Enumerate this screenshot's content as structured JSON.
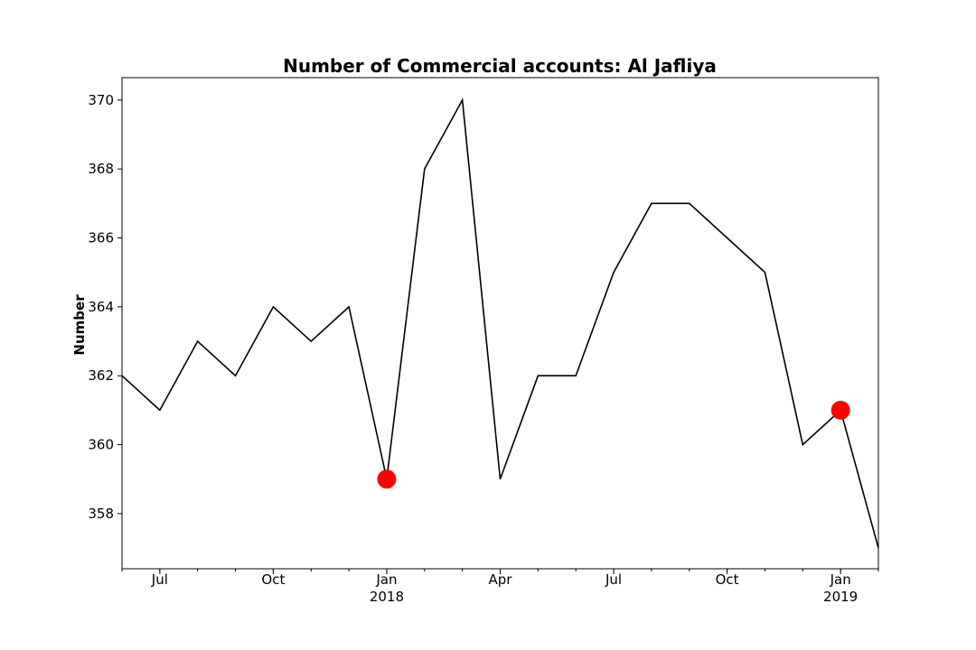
{
  "chart_data": {
    "type": "line",
    "title": "Number of Commercial accounts: Al Jafliya",
    "xlabel": "",
    "ylabel": "Number",
    "x": [
      "2017-06",
      "2017-07",
      "2017-08",
      "2017-09",
      "2017-10",
      "2017-11",
      "2017-12",
      "2018-01",
      "2018-02",
      "2018-03",
      "2018-04",
      "2018-05",
      "2018-06",
      "2018-07",
      "2018-08",
      "2018-09",
      "2018-10",
      "2018-11",
      "2018-12",
      "2019-01",
      "2019-02"
    ],
    "series": [
      {
        "values": [
          362,
          361,
          363,
          362,
          364,
          363,
          364,
          359,
          368,
          370,
          359,
          362,
          362,
          365,
          367,
          367,
          366,
          365,
          360,
          361,
          357
        ],
        "color": "#000000"
      }
    ],
    "highlighted_points": [
      {
        "x": "2018-01",
        "y": 359,
        "color": "#ff0000"
      },
      {
        "x": "2019-01",
        "y": 361,
        "color": "#ff0000"
      }
    ],
    "xlim": [
      "2017-06",
      "2019-02"
    ],
    "ylim": [
      356.4,
      370.65
    ],
    "y_ticks": [
      358,
      360,
      362,
      364,
      366,
      368,
      370
    ],
    "x_major_ticks": [
      {
        "x": "2017-07",
        "label": "Jul"
      },
      {
        "x": "2017-10",
        "label": "Oct"
      },
      {
        "x": "2018-01",
        "label": "Jan",
        "sublabel": "2018"
      },
      {
        "x": "2018-04",
        "label": "Apr"
      },
      {
        "x": "2018-07",
        "label": "Jul"
      },
      {
        "x": "2018-10",
        "label": "Oct"
      },
      {
        "x": "2019-01",
        "label": "Jan",
        "sublabel": "2019"
      }
    ],
    "grid": false,
    "legend": "none"
  }
}
